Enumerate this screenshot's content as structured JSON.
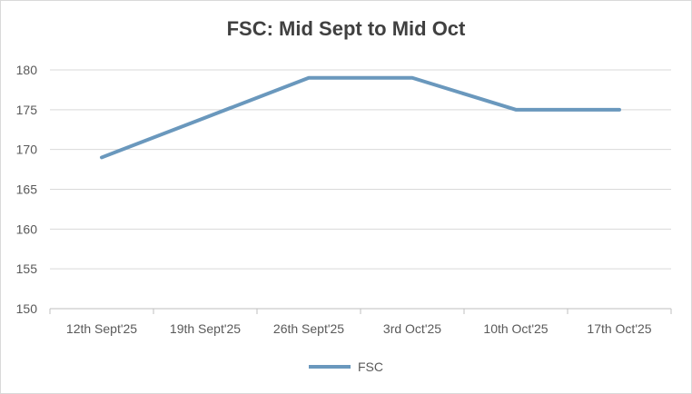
{
  "chart_data": {
    "type": "line",
    "title": "FSC: Mid Sept to Mid Oct",
    "categories": [
      "12th Sept'25",
      "19th Sept'25",
      "26th Sept'25",
      "3rd Oct'25",
      "10th Oct'25",
      "17th Oct'25"
    ],
    "series": [
      {
        "name": "FSC",
        "values": [
          169,
          174,
          179,
          179,
          175,
          175
        ],
        "color": "#6a98bd"
      }
    ],
    "ylim": [
      150,
      180
    ],
    "yticks": [
      150,
      155,
      160,
      165,
      170,
      175,
      180
    ],
    "xlabel": "",
    "ylabel": "",
    "grid": true,
    "legend_position": "bottom"
  }
}
